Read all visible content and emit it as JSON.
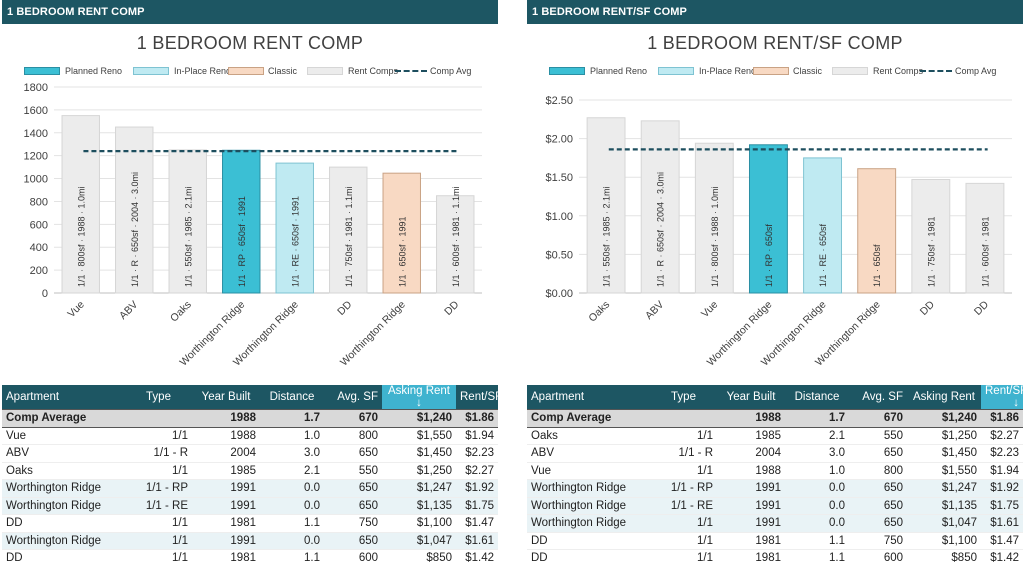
{
  "colors": {
    "header_bg": "#1d5663",
    "sorted_header_bg": "#3fb3cf",
    "planned_reno": "#3bbfd4",
    "in_place_reno": "#bfeaf2",
    "classic": "#f8d9c3",
    "rent_comps": "#ececec",
    "comp_avg_line": "#1d4e5e"
  },
  "left": {
    "header": "1 BEDROOM RENT COMP",
    "legend": [
      {
        "label": "Planned Reno",
        "cat": "planned"
      },
      {
        "label": "In-Place Reno",
        "cat": "inplace"
      },
      {
        "label": "Classic",
        "cat": "classic"
      },
      {
        "label": "Rent Comps",
        "cat": "comps"
      },
      {
        "label": "Comp Avg",
        "cat": "avg"
      }
    ],
    "chart_data": {
      "type": "bar",
      "title": "1 BEDROOM RENT COMP",
      "categories": [
        "Vue",
        "ABV",
        "Oaks",
        "Worthington Ridge",
        "Worthington Ridge",
        "DD",
        "Worthington Ridge",
        "DD"
      ],
      "values": [
        1550,
        1450,
        1250,
        1247,
        1135,
        1100,
        1047,
        850
      ],
      "bar_labels": [
        "1/1 · 800sf · 1988 · 1.0mi",
        "1/1 · R · 650sf · 2004 · 3.0mi",
        "1/1 · 550sf · 1985 · 2.1mi",
        "1/1 · RP · 650sf · 1991",
        "1/1 · RE · 650sf · 1991",
        "1/1 · 750sf · 1981 · 1.1mi",
        "1/1 · 650sf · 1991",
        "1/1 · 600sf · 1981 · 1.1mi"
      ],
      "bar_types": [
        "comps",
        "comps",
        "comps",
        "planned",
        "inplace",
        "comps",
        "classic",
        "comps"
      ],
      "comp_avg": 1240,
      "ylim": [
        0,
        1800
      ],
      "yticks": [
        0,
        200,
        400,
        600,
        800,
        1000,
        1200,
        1400,
        1600,
        1800
      ],
      "ytick_labels": [
        "0",
        "200",
        "400",
        "600",
        "800",
        "1000",
        "1200",
        "1400",
        "1600",
        "1800"
      ],
      "xlabel": "",
      "ylabel": "",
      "grid": true
    },
    "table": {
      "headers": [
        "Apartment",
        "Type",
        "Year Built",
        "Distance",
        "Avg. SF",
        "Asking Rent ↓",
        "Rent/SF"
      ],
      "sorted_col": 5,
      "avg": [
        "Comp Average",
        "",
        "1988",
        "1.7",
        "670",
        "$1,240",
        "$1.86"
      ],
      "rows": [
        [
          "Vue",
          "1/1",
          "1988",
          "1.0",
          "800",
          "$1,550",
          "$1.94"
        ],
        [
          "ABV",
          "1/1 - R",
          "2004",
          "3.0",
          "650",
          "$1,450",
          "$2.23"
        ],
        [
          "Oaks",
          "1/1",
          "1985",
          "2.1",
          "550",
          "$1,250",
          "$2.27"
        ],
        [
          "Worthington Ridge",
          "1/1 - RP",
          "1991",
          "0.0",
          "650",
          "$1,247",
          "$1.92"
        ],
        [
          "Worthington Ridge",
          "1/1 - RE",
          "1991",
          "0.0",
          "650",
          "$1,135",
          "$1.75"
        ],
        [
          "DD",
          "1/1",
          "1981",
          "1.1",
          "750",
          "$1,100",
          "$1.47"
        ],
        [
          "Worthington Ridge",
          "1/1",
          "1991",
          "0.0",
          "650",
          "$1,047",
          "$1.61"
        ],
        [
          "DD",
          "1/1",
          "1981",
          "1.1",
          "600",
          "$850",
          "$1.42"
        ]
      ],
      "shaded": [
        false,
        false,
        false,
        true,
        true,
        false,
        true,
        false
      ]
    }
  },
  "right": {
    "header": "1 BEDROOM RENT/SF COMP",
    "legend": [
      {
        "label": "Planned Reno",
        "cat": "planned"
      },
      {
        "label": "In-Place Reno",
        "cat": "inplace"
      },
      {
        "label": "Classic",
        "cat": "classic"
      },
      {
        "label": "Rent Comps",
        "cat": "comps"
      },
      {
        "label": "Comp Avg",
        "cat": "avg"
      }
    ],
    "chart_data": {
      "type": "bar",
      "title": "1 BEDROOM RENT/SF COMP",
      "categories": [
        "Oaks",
        "ABV",
        "Vue",
        "Worthington Ridge",
        "Worthington Ridge",
        "Worthington Ridge",
        "DD",
        "DD"
      ],
      "values": [
        2.27,
        2.23,
        1.94,
        1.92,
        1.75,
        1.61,
        1.47,
        1.42
      ],
      "bar_labels": [
        "1/1 · 550sf · 1985 · 2.1mi",
        "1/1 · R · 650sf · 2004 · 3.0mi",
        "1/1 · 800sf · 1988 · 1.0mi",
        "1/1 · RP · 650sf",
        "1/1 · RE · 650sf",
        "1/1 · 650sf",
        "1/1 · 750sf · 1981",
        "1/1 · 600sf · 1981"
      ],
      "bar_types": [
        "comps",
        "comps",
        "comps",
        "planned",
        "inplace",
        "classic",
        "comps",
        "comps"
      ],
      "comp_avg": 1.86,
      "ylim": [
        0,
        2.5
      ],
      "yticks": [
        0,
        0.5,
        1.0,
        1.5,
        2.0,
        2.5
      ],
      "ytick_labels": [
        "$0.00",
        "$0.50",
        "$1.00",
        "$1.50",
        "$2.00",
        "$2.50"
      ],
      "xlabel": "",
      "ylabel": "",
      "grid": true
    },
    "table": {
      "headers": [
        "Apartment",
        "Type",
        "Year Built",
        "Distance",
        "Avg. SF",
        "Asking Rent",
        "Rent/SF ↓"
      ],
      "sorted_col": 6,
      "avg": [
        "Comp Average",
        "",
        "1988",
        "1.7",
        "670",
        "$1,240",
        "$1.86"
      ],
      "rows": [
        [
          "Oaks",
          "1/1",
          "1985",
          "2.1",
          "550",
          "$1,250",
          "$2.27"
        ],
        [
          "ABV",
          "1/1 - R",
          "2004",
          "3.0",
          "650",
          "$1,450",
          "$2.23"
        ],
        [
          "Vue",
          "1/1",
          "1988",
          "1.0",
          "800",
          "$1,550",
          "$1.94"
        ],
        [
          "Worthington Ridge",
          "1/1 - RP",
          "1991",
          "0.0",
          "650",
          "$1,247",
          "$1.92"
        ],
        [
          "Worthington Ridge",
          "1/1 - RE",
          "1991",
          "0.0",
          "650",
          "$1,135",
          "$1.75"
        ],
        [
          "Worthington Ridge",
          "1/1",
          "1991",
          "0.0",
          "650",
          "$1,047",
          "$1.61"
        ],
        [
          "DD",
          "1/1",
          "1981",
          "1.1",
          "750",
          "$1,100",
          "$1.47"
        ],
        [
          "DD",
          "1/1",
          "1981",
          "1.1",
          "600",
          "$850",
          "$1.42"
        ]
      ],
      "shaded": [
        false,
        false,
        false,
        true,
        true,
        true,
        false,
        false
      ]
    }
  }
}
